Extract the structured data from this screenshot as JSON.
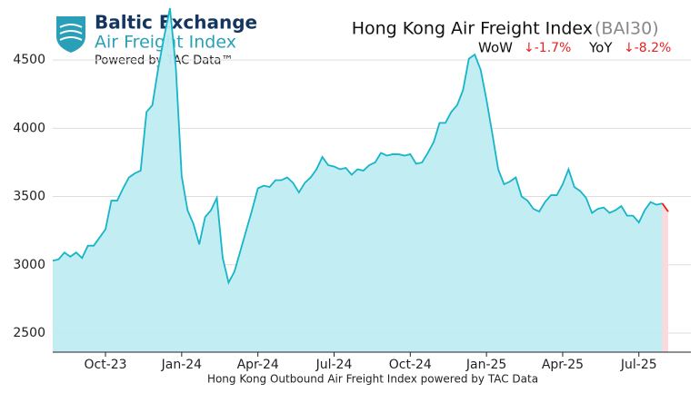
{
  "chart_data": {
    "type": "area",
    "title": "Hong Kong Air Freight Index",
    "index_code": "(BAI30)",
    "brand": {
      "name": "Baltic Exchange",
      "product": "Air Freight Index",
      "powered": "Powered by TAC Data™"
    },
    "changes": [
      {
        "name": "WoW",
        "label": "↓-1.7%"
      },
      {
        "name": "YoY",
        "label": "↓-8.2%"
      }
    ],
    "x_label": "Hong Kong Outbound Air Freight Index powered by TAC Data",
    "categories": [
      null,
      null,
      null,
      null,
      null,
      null,
      null,
      null,
      null,
      "Oct-23",
      null,
      null,
      null,
      null,
      null,
      null,
      null,
      null,
      null,
      null,
      null,
      null,
      "Jan-24",
      null,
      null,
      null,
      null,
      null,
      null,
      null,
      null,
      null,
      null,
      null,
      null,
      "Apr-24",
      null,
      null,
      null,
      null,
      null,
      null,
      null,
      null,
      null,
      null,
      null,
      null,
      "Jul-24",
      null,
      null,
      null,
      null,
      null,
      null,
      null,
      null,
      null,
      null,
      null,
      null,
      "Oct-24",
      null,
      null,
      null,
      null,
      null,
      null,
      null,
      null,
      null,
      null,
      null,
      null,
      "Jan-25",
      null,
      null,
      null,
      null,
      null,
      null,
      null,
      null,
      null,
      null,
      null,
      null,
      "Apr-25",
      null,
      null,
      null,
      null,
      null,
      null,
      null,
      null,
      null,
      null,
      null,
      null,
      "Jul-25",
      null,
      null,
      null,
      null,
      null
    ],
    "series": [
      {
        "name": "BAI30",
        "color": "#16b5c8",
        "fill": "#bfecf2",
        "decline_color": "#e8201e",
        "decline_fill": "#fbd9dc",
        "values": [
          3030,
          3040,
          3090,
          3060,
          3090,
          3050,
          3140,
          3140,
          3200,
          3260,
          3470,
          3470,
          3560,
          3640,
          3670,
          3690,
          4120,
          4170,
          4440,
          4670,
          4880,
          4450,
          3650,
          3400,
          3300,
          3150,
          3350,
          3400,
          3490,
          3050,
          2870,
          2950,
          3100,
          3250,
          3400,
          3560,
          3580,
          3570,
          3620,
          3620,
          3640,
          3600,
          3530,
          3600,
          3640,
          3700,
          3790,
          3730,
          3720,
          3700,
          3710,
          3660,
          3700,
          3690,
          3730,
          3750,
          3820,
          3800,
          3810,
          3810,
          3800,
          3810,
          3740,
          3750,
          3820,
          3900,
          4040,
          4040,
          4120,
          4170,
          4280,
          4510,
          4540,
          4430,
          4210,
          3960,
          3700,
          3590,
          3610,
          3640,
          3500,
          3470,
          3410,
          3390,
          3460,
          3510,
          3510,
          3590,
          3700,
          3570,
          3540,
          3490,
          3380,
          3410,
          3420,
          3380,
          3400,
          3430,
          3360,
          3360,
          3310,
          3400,
          3460,
          3440,
          3450,
          3390
        ]
      }
    ],
    "ylim": [
      2360,
      4940
    ],
    "yticks": [
      2500,
      3000,
      3500,
      4000,
      4500
    ],
    "grid": true
  }
}
